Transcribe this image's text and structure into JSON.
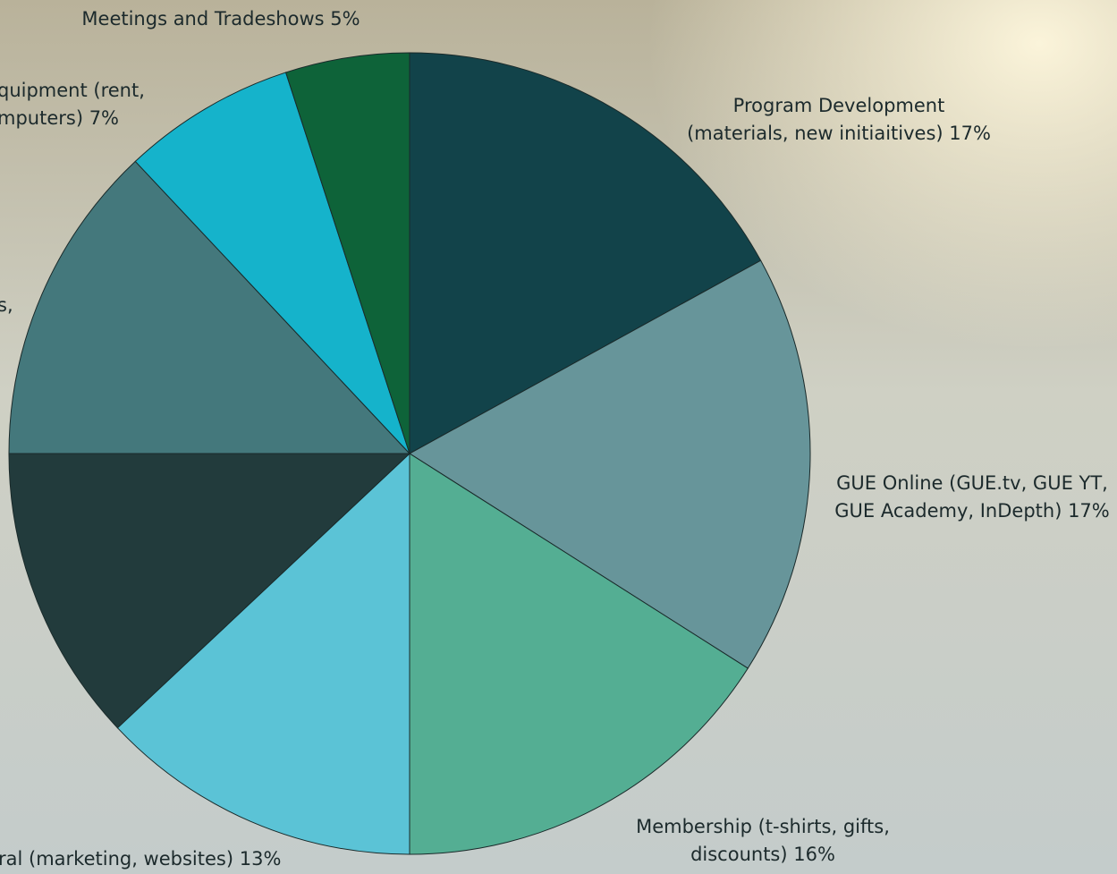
{
  "chart_data": {
    "type": "pie",
    "labels": [
      [
        "Program Development",
        "(materials, new initiaitives) 17%"
      ],
      [
        "GUE Online (GUE.tv, GUE YT,",
        "GUE Academy, InDepth) 17%"
      ],
      [
        "Membership (t-shirts, gifts,",
        "discounts) 16%"
      ],
      [
        "ral (marketing, websites) 13%"
      ],
      null,
      [
        "s,"
      ],
      [
        "quipment (rent,",
        "mputers) 7%"
      ],
      [
        "Meetings and Tradeshows 5%"
      ]
    ],
    "values": [
      17,
      17,
      16,
      13,
      12,
      13,
      7,
      5
    ],
    "colors": [
      "#12434a",
      "#67959a",
      "#54ae93",
      "#5bc3d6",
      "#223b3c",
      "#44787c",
      "#15b3cb",
      "#0e6339"
    ]
  }
}
